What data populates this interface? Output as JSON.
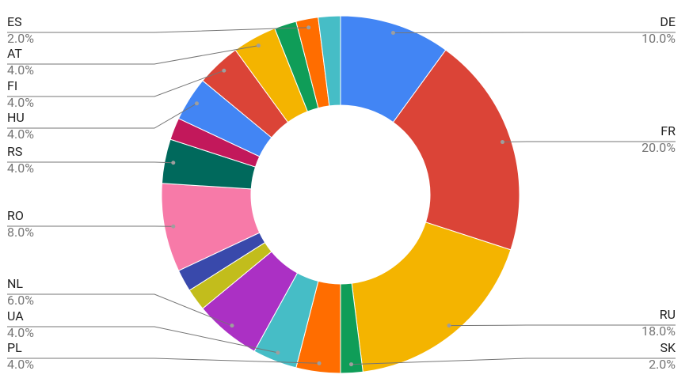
{
  "chart_data": {
    "type": "donut",
    "categories": [
      "DE",
      "FR",
      "RU",
      "SK",
      "PL",
      "UA",
      "NL",
      null,
      null,
      "RO",
      "RS",
      null,
      "HU",
      "FI",
      "AT",
      null,
      "ES",
      null
    ],
    "values": [
      10,
      20,
      18,
      2,
      4,
      4,
      6,
      2,
      2,
      8,
      4,
      2,
      4,
      4,
      4,
      2,
      2,
      2
    ],
    "value_labels": [
      "10.0%",
      "20.0%",
      "18.0%",
      "2.0%",
      "4.0%",
      "4.0%",
      "6.0%",
      null,
      null,
      "8.0%",
      "4.0%",
      null,
      "4.0%",
      "4.0%",
      "4.0%",
      null,
      "2.0%",
      null
    ],
    "colors": [
      "#4285f4",
      "#db4437",
      "#f4b400",
      "#0f9d58",
      "#ff6d00",
      "#46bdc6",
      "#ab30c4",
      "#c2bd1c",
      "#3949ab",
      "#f77aa8",
      "#00695c",
      "#c2185b",
      "#4285f4",
      "#db4437",
      "#f4b400",
      "#0f9d58",
      "#ff6d00",
      "#46bdc6"
    ]
  }
}
